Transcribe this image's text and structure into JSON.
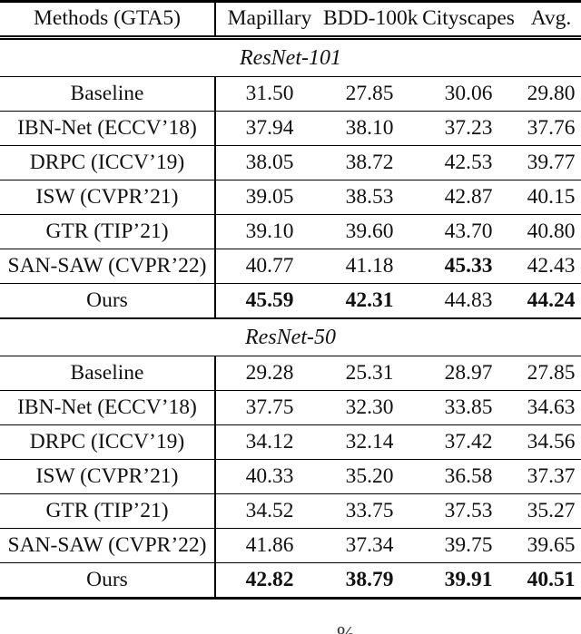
{
  "colors": {
    "background": "#ffffff",
    "text": "#111111",
    "rule": "#000000"
  },
  "table": {
    "header": {
      "methods": "Methods (GTA5)",
      "columns": [
        "Mapillary",
        "BDD-100k",
        "Cityscapes",
        "Avg."
      ]
    },
    "sections": [
      {
        "title": "ResNet-101",
        "rows": [
          {
            "method": "Baseline",
            "values": [
              "31.50",
              "27.85",
              "30.06",
              "29.80"
            ],
            "bold": [
              false,
              false,
              false,
              false
            ]
          },
          {
            "method": "IBN-Net (ECCV’18)",
            "values": [
              "37.94",
              "38.10",
              "37.23",
              "37.76"
            ],
            "bold": [
              false,
              false,
              false,
              false
            ]
          },
          {
            "method": "DRPC (ICCV’19)",
            "values": [
              "38.05",
              "38.72",
              "42.53",
              "39.77"
            ],
            "bold": [
              false,
              false,
              false,
              false
            ]
          },
          {
            "method": "ISW (CVPR’21)",
            "values": [
              "39.05",
              "38.53",
              "42.87",
              "40.15"
            ],
            "bold": [
              false,
              false,
              false,
              false
            ]
          },
          {
            "method": "GTR (TIP’21)",
            "values": [
              "39.10",
              "39.60",
              "43.70",
              "40.80"
            ],
            "bold": [
              false,
              false,
              false,
              false
            ]
          },
          {
            "method": "SAN-SAW (CVPR’22)",
            "values": [
              "40.77",
              "41.18",
              "45.33",
              "42.43"
            ],
            "bold": [
              false,
              false,
              true,
              false
            ]
          },
          {
            "method": "Ours",
            "values": [
              "45.59",
              "42.31",
              "44.83",
              "44.24"
            ],
            "bold": [
              true,
              true,
              false,
              true
            ]
          }
        ]
      },
      {
        "title": "ResNet-50",
        "rows": [
          {
            "method": "Baseline",
            "values": [
              "29.28",
              "25.31",
              "28.97",
              "27.85"
            ],
            "bold": [
              false,
              false,
              false,
              false
            ]
          },
          {
            "method": "IBN-Net (ECCV’18)",
            "values": [
              "37.75",
              "32.30",
              "33.85",
              "34.63"
            ],
            "bold": [
              false,
              false,
              false,
              false
            ]
          },
          {
            "method": "DRPC (ICCV’19)",
            "values": [
              "34.12",
              "32.14",
              "37.42",
              "34.56"
            ],
            "bold": [
              false,
              false,
              false,
              false
            ]
          },
          {
            "method": "ISW (CVPR’21)",
            "values": [
              "40.33",
              "35.20",
              "36.58",
              "37.37"
            ],
            "bold": [
              false,
              false,
              false,
              false
            ]
          },
          {
            "method": "GTR (TIP’21)",
            "values": [
              "34.52",
              "33.75",
              "37.53",
              "35.27"
            ],
            "bold": [
              false,
              false,
              false,
              false
            ]
          },
          {
            "method": "SAN-SAW (CVPR’22)",
            "values": [
              "41.86",
              "37.34",
              "39.75",
              "39.65"
            ],
            "bold": [
              false,
              false,
              false,
              false
            ]
          },
          {
            "method": "Ours",
            "values": [
              "42.82",
              "38.79",
              "39.91",
              "40.51"
            ],
            "bold": [
              true,
              true,
              true,
              true
            ]
          }
        ]
      }
    ],
    "caption_fragment": "%"
  }
}
